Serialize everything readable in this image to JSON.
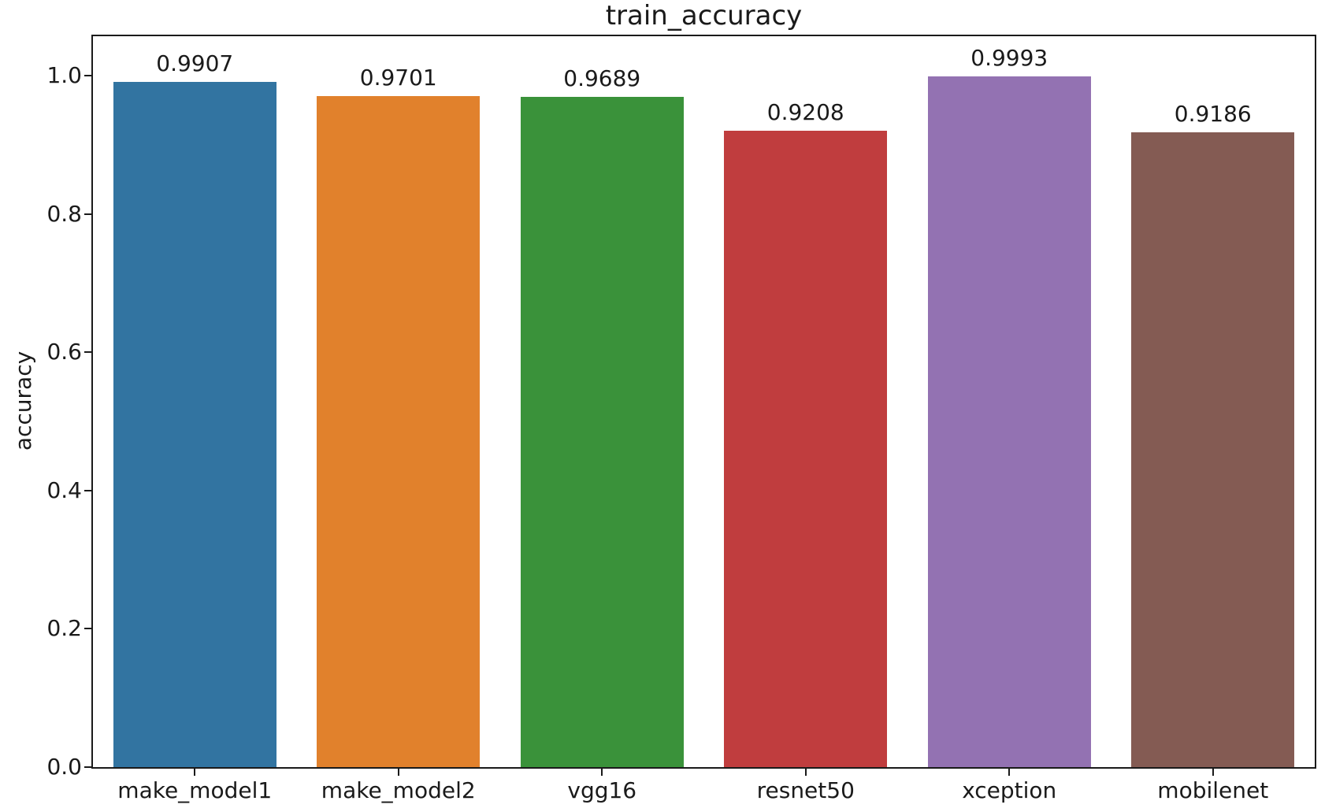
{
  "figure": {
    "background": "#ffffff"
  },
  "chart_data": {
    "type": "bar",
    "title": "train_accuracy",
    "xlabel": "",
    "ylabel": "accuracy",
    "categories": [
      "make_model1",
      "make_model2",
      "vgg16",
      "resnet50",
      "xception",
      "mobilenet"
    ],
    "values": [
      0.9907,
      0.9701,
      0.9689,
      0.9208,
      0.9993,
      0.9186
    ],
    "value_labels": [
      "0.9907",
      "0.9701",
      "0.9689",
      "0.9208",
      "0.9993",
      "0.9186"
    ],
    "bar_colors": [
      "#3274a1",
      "#e1812c",
      "#3a923a",
      "#c03d3e",
      "#9372b2",
      "#845b53"
    ],
    "ytick_labels": [
      "0.0",
      "0.2",
      "0.4",
      "0.6",
      "0.8",
      "1.0"
    ],
    "ytick_values": [
      0.0,
      0.2,
      0.4,
      0.6,
      0.8,
      1.0
    ],
    "ylim": [
      0,
      1.057
    ],
    "bar_width_fraction": 0.8,
    "grid": "off",
    "legend": "none",
    "text_color": "#1a1a1a",
    "axis_color": "#1a1a1a"
  }
}
